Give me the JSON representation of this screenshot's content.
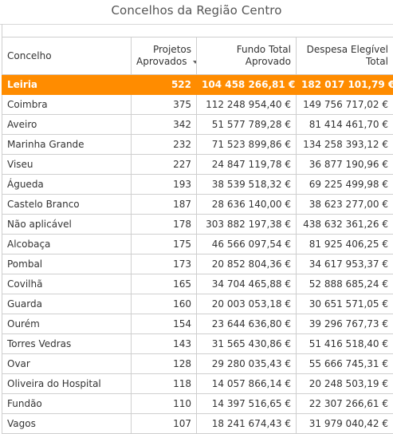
{
  "title": "Concelhos da Região Centro",
  "columns": {
    "concelho": "Concelho",
    "projetos": [
      "Projetos",
      "Aprovados"
    ],
    "fundo": [
      "Fundo Total",
      "Aprovado"
    ],
    "despesa": [
      "Despesa Elegível",
      "Total"
    ]
  },
  "rows": [
    {
      "concelho": "Leiria",
      "projetos": "522",
      "fundo": "104 458 266,81 €",
      "despesa": "182 017 101,79 €"
    },
    {
      "concelho": "Coimbra",
      "projetos": "375",
      "fundo": "112 248 954,40 €",
      "despesa": "149 756 717,02 €"
    },
    {
      "concelho": "Aveiro",
      "projetos": "342",
      "fundo": "51 577 789,28 €",
      "despesa": "81 414 461,70 €"
    },
    {
      "concelho": "Marinha Grande",
      "projetos": "232",
      "fundo": "71 523 899,86 €",
      "despesa": "134 258 393,12 €"
    },
    {
      "concelho": "Viseu",
      "projetos": "227",
      "fundo": "24 847 119,78 €",
      "despesa": "36 877 190,96 €"
    },
    {
      "concelho": "Águeda",
      "projetos": "193",
      "fundo": "38 539 518,32 €",
      "despesa": "69 225 499,98 €"
    },
    {
      "concelho": "Castelo Branco",
      "projetos": "187",
      "fundo": "28 636 140,00 €",
      "despesa": "38 623 277,00 €"
    },
    {
      "concelho": "Não aplicável",
      "projetos": "178",
      "fundo": "303 882 197,38 €",
      "despesa": "438 632 361,26 €"
    },
    {
      "concelho": "Alcobaça",
      "projetos": "175",
      "fundo": "46 566 097,54 €",
      "despesa": "81 925 406,25 €"
    },
    {
      "concelho": "Pombal",
      "projetos": "173",
      "fundo": "20 852 804,36 €",
      "despesa": "34 617 953,37 €"
    },
    {
      "concelho": "Covilhã",
      "projetos": "165",
      "fundo": "34 704 465,88 €",
      "despesa": "52 888 685,24 €"
    },
    {
      "concelho": "Guarda",
      "projetos": "160",
      "fundo": "20 003 053,18 €",
      "despesa": "30 651 571,05 €"
    },
    {
      "concelho": "Ourém",
      "projetos": "154",
      "fundo": "23 644 636,80 €",
      "despesa": "39 296 767,73 €"
    },
    {
      "concelho": "Torres Vedras",
      "projetos": "143",
      "fundo": "31 565 430,86 €",
      "despesa": "51 416 518,40 €"
    },
    {
      "concelho": "Ovar",
      "projetos": "128",
      "fundo": "29 280 035,43 €",
      "despesa": "55 666 745,31 €"
    },
    {
      "concelho": "Oliveira do Hospital",
      "projetos": "118",
      "fundo": "14 057 866,14 €",
      "despesa": "20 248 503,19 €"
    },
    {
      "concelho": "Fundão",
      "projetos": "110",
      "fundo": "14 397 516,65 €",
      "despesa": "22 307 266,61 €"
    },
    {
      "concelho": "Vagos",
      "projetos": "107",
      "fundo": "18 241 674,43 €",
      "despesa": "31 979 040,42 €"
    }
  ],
  "selected_index": 0,
  "colors": {
    "selected_row": "#ff8c00",
    "border": "#cfcfcf"
  },
  "icons": {
    "sort": "sort-descending-icon"
  }
}
